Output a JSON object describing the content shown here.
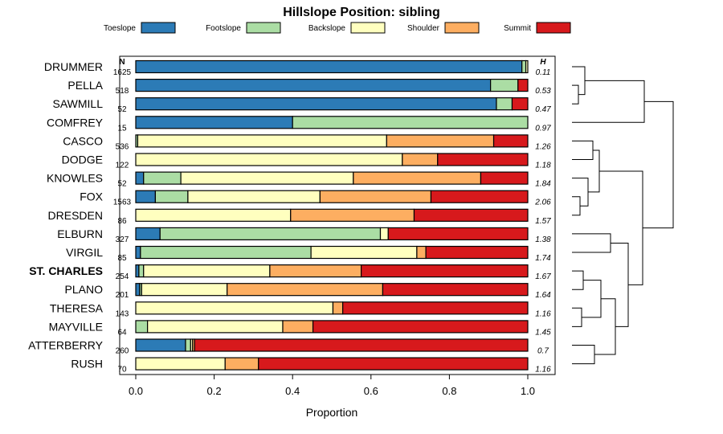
{
  "chart_data": {
    "type": "bar",
    "orientation": "horizontal",
    "stacked": true,
    "title": "Hillslope Position: sibling",
    "xlabel": "Proportion",
    "xlim": [
      0,
      1
    ],
    "xticks": [
      0,
      0.2,
      0.4,
      0.6,
      0.8,
      1
    ],
    "xtick_labels": [
      "0.0",
      "0.2",
      "0.4",
      "0.6",
      "0.8",
      "1.0"
    ],
    "n_header": "N",
    "h_header": "H",
    "legend_position": "top",
    "series": [
      {
        "name": "Toeslope",
        "color": "#2c7bb6"
      },
      {
        "name": "Footslope",
        "color": "#abdda4"
      },
      {
        "name": "Backslope",
        "color": "#ffffbf"
      },
      {
        "name": "Shoulder",
        "color": "#fdae61"
      },
      {
        "name": "Summit",
        "color": "#d7191c"
      }
    ],
    "rows": [
      {
        "label": "DRUMMER",
        "n": "1625",
        "h": "0.11",
        "bold": false,
        "values": [
          0.985,
          0.01,
          0.005,
          0,
          0
        ]
      },
      {
        "label": "PELLA",
        "n": "518",
        "h": "0.53",
        "bold": false,
        "values": [
          0.905,
          0.07,
          0,
          0,
          0.025
        ]
      },
      {
        "label": "SAWMILL",
        "n": "52",
        "h": "0.47",
        "bold": false,
        "values": [
          0.92,
          0.04,
          0,
          0,
          0.04
        ]
      },
      {
        "label": "COMFREY",
        "n": "15",
        "h": "0.97",
        "bold": false,
        "values": [
          0.4,
          0.6,
          0,
          0,
          0
        ]
      },
      {
        "label": "CASCO",
        "n": "536",
        "h": "1.26",
        "bold": false,
        "values": [
          0,
          0.005,
          0.635,
          0.273,
          0.087
        ]
      },
      {
        "label": "DODGE",
        "n": "122",
        "h": "1.18",
        "bold": false,
        "values": [
          0,
          0,
          0.68,
          0.09,
          0.23
        ]
      },
      {
        "label": "KNOWLES",
        "n": "52",
        "h": "1.84",
        "bold": false,
        "values": [
          0.02,
          0.095,
          0.44,
          0.325,
          0.12
        ]
      },
      {
        "label": "FOX",
        "n": "1563",
        "h": "2.06",
        "bold": false,
        "values": [
          0.05,
          0.083,
          0.337,
          0.283,
          0.247
        ]
      },
      {
        "label": "DRESDEN",
        "n": "86",
        "h": "1.57",
        "bold": false,
        "values": [
          0,
          0,
          0.395,
          0.315,
          0.29
        ]
      },
      {
        "label": "ELBURN",
        "n": "327",
        "h": "1.38",
        "bold": false,
        "values": [
          0.062,
          0.562,
          0.02,
          0,
          0.356
        ]
      },
      {
        "label": "VIRGIL",
        "n": "85",
        "h": "1.74",
        "bold": false,
        "values": [
          0.012,
          0.435,
          0.27,
          0.023,
          0.26
        ]
      },
      {
        "label": "ST. CHARLES",
        "n": "254",
        "h": "1.67",
        "bold": true,
        "values": [
          0.008,
          0.012,
          0.322,
          0.233,
          0.425
        ]
      },
      {
        "label": "PLANO",
        "n": "201",
        "h": "1.64",
        "bold": false,
        "values": [
          0.01,
          0.005,
          0.218,
          0.397,
          0.37
        ]
      },
      {
        "label": "THERESA",
        "n": "143",
        "h": "1.16",
        "bold": false,
        "values": [
          0,
          0,
          0.503,
          0.025,
          0.472
        ]
      },
      {
        "label": "MAYVILLE",
        "n": "64",
        "h": "1.45",
        "bold": false,
        "values": [
          0,
          0.03,
          0.345,
          0.077,
          0.548
        ]
      },
      {
        "label": "ATTERBERRY",
        "n": "260",
        "h": "0.7",
        "bold": false,
        "values": [
          0.127,
          0.013,
          0.005,
          0.005,
          0.85
        ]
      },
      {
        "label": "RUSH",
        "n": "70",
        "h": "1.16",
        "bold": false,
        "values": [
          0,
          0,
          0.228,
          0.085,
          0.687
        ]
      }
    ],
    "dendrogram": {
      "description": "hierarchical clustering of rows (merge heights in relative units)",
      "merges": [
        {
          "id": "m1",
          "left": "PELLA",
          "right": "SAWMILL",
          "height": 0.04
        },
        {
          "id": "m2",
          "left": "DRUMMER",
          "right": "m1",
          "height": 0.08
        },
        {
          "id": "m3",
          "left": "m2",
          "right": "COMFREY",
          "height": 0.45
        },
        {
          "id": "m4",
          "left": "DRESDEN",
          "right": "FOX",
          "height": 0.05
        },
        {
          "id": "m5",
          "left": "m4",
          "right": "KNOWLES",
          "height": 0.1
        },
        {
          "id": "m6",
          "left": "CASCO",
          "right": "DODGE",
          "height": 0.13
        },
        {
          "id": "m7",
          "left": "m6",
          "right": "m5",
          "height": 0.17
        },
        {
          "id": "m8",
          "left": "ELBURN",
          "right": "VIRGIL",
          "height": 0.24
        },
        {
          "id": "m9",
          "left": "ST. CHARLES",
          "right": "PLANO",
          "height": 0.07
        },
        {
          "id": "m10",
          "left": "THERESA",
          "right": "MAYVILLE",
          "height": 0.06
        },
        {
          "id": "m11",
          "left": "ATTERBERRY",
          "right": "RUSH",
          "height": 0.14
        },
        {
          "id": "m12",
          "left": "m9",
          "right": "m10",
          "height": 0.18
        },
        {
          "id": "m13",
          "left": "m12",
          "right": "m11",
          "height": 0.27
        },
        {
          "id": "m14",
          "left": "m8",
          "right": "m13",
          "height": 0.35
        },
        {
          "id": "m15",
          "left": "m7",
          "right": "m14",
          "height": 0.44
        },
        {
          "id": "m16",
          "left": "m3",
          "right": "m15",
          "height": 0.63
        }
      ]
    }
  }
}
